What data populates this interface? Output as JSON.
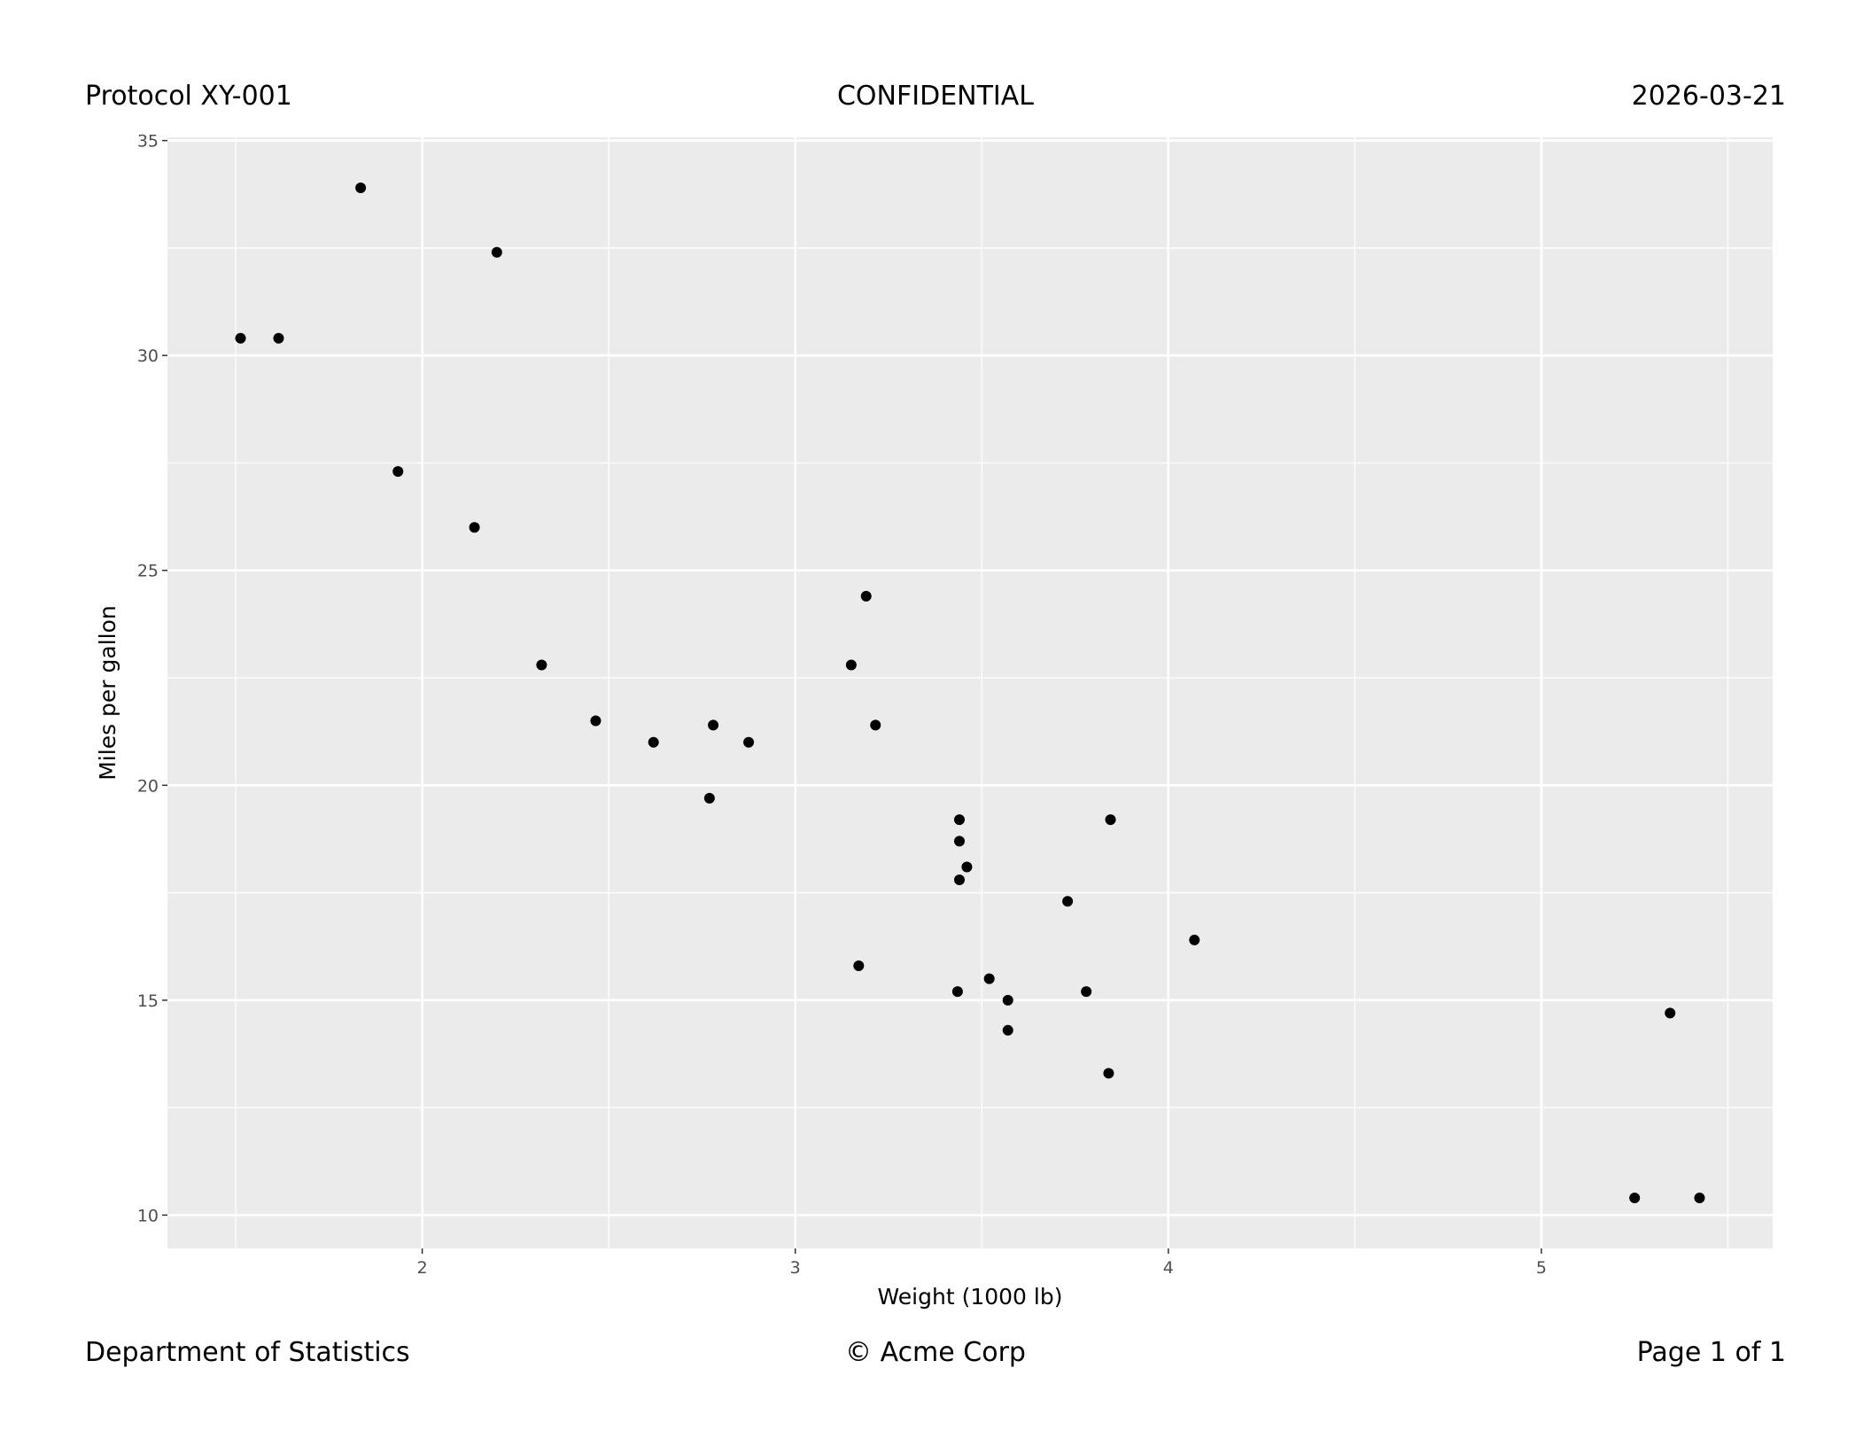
{
  "header": {
    "left": "Protocol XY-001",
    "center": "CONFIDENTIAL",
    "right": "2026-03-21"
  },
  "footer": {
    "left": "Department of Statistics",
    "center": "© Acme Corp",
    "right": "Page 1 of 1"
  },
  "chart_data": {
    "type": "scatter",
    "title": "",
    "xlabel": "Weight (1000 lb)",
    "ylabel": "Miles per gallon",
    "xlim": [
      1.317,
      5.62
    ],
    "ylim": [
      9.225,
      35.075
    ],
    "xticks": [
      2,
      3,
      4,
      5
    ],
    "yticks": [
      10,
      15,
      20,
      25,
      30,
      35
    ],
    "grid": true,
    "background": "#ebebeb",
    "point_color": "#000000",
    "x": [
      2.62,
      2.875,
      2.32,
      3.215,
      3.44,
      3.46,
      3.57,
      3.19,
      3.15,
      3.44,
      3.44,
      4.07,
      3.73,
      3.78,
      5.25,
      5.424,
      5.345,
      2.2,
      1.615,
      1.835,
      2.465,
      3.52,
      3.435,
      3.84,
      3.845,
      1.935,
      2.14,
      1.513,
      3.17,
      2.77,
      3.57,
      2.78
    ],
    "y": [
      21.0,
      21.0,
      22.8,
      21.4,
      18.7,
      18.1,
      14.3,
      24.4,
      22.8,
      19.2,
      17.8,
      16.4,
      17.3,
      15.2,
      10.4,
      10.4,
      14.7,
      32.4,
      30.4,
      33.9,
      21.5,
      15.5,
      15.2,
      13.3,
      19.2,
      27.3,
      26.0,
      30.4,
      15.8,
      19.7,
      15.0,
      21.4
    ]
  }
}
